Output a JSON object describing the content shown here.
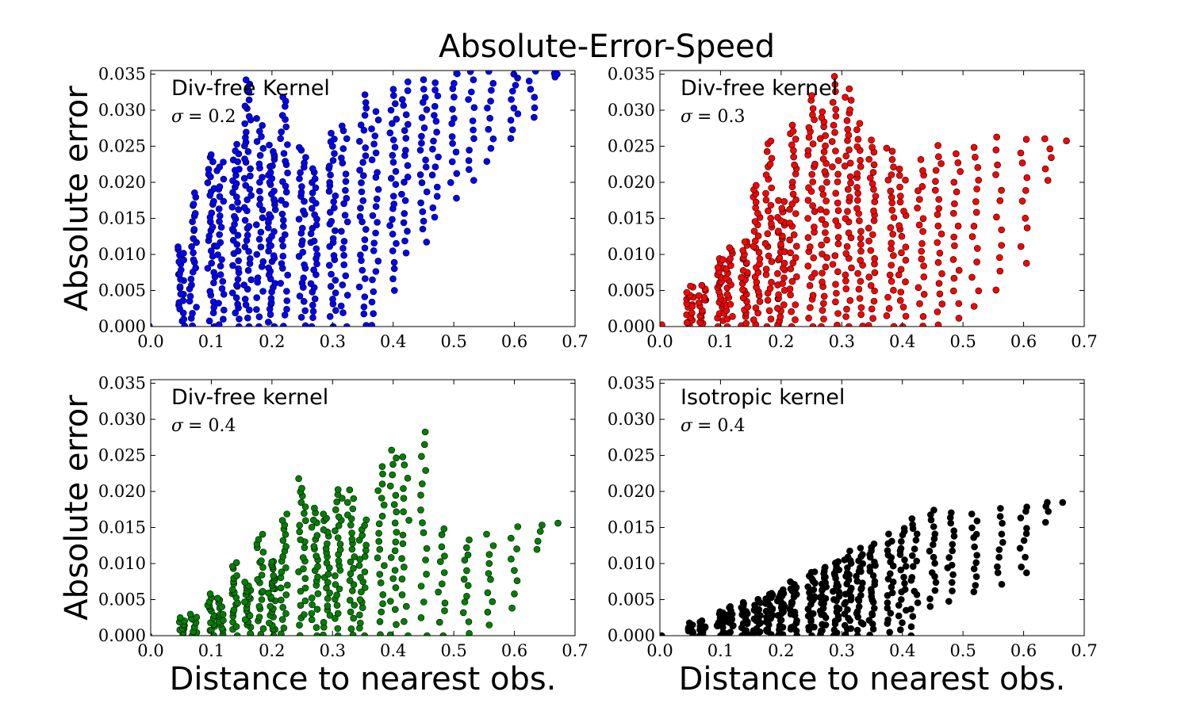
{
  "suptitle": "Absolute-Error-Speed",
  "chart_data": [
    {
      "type": "scatter",
      "title": "",
      "annotation": "Div-free Kernel",
      "sigma_label": "σ = 0.2",
      "sigma_symbol": "σ",
      "sigma_value": "= 0.2",
      "color": "#0000ff",
      "xlabel": "",
      "ylabel": "Absolute error",
      "xlim": [
        0.0,
        0.7
      ],
      "ylim": [
        0.0,
        0.0355
      ],
      "xticks": [
        "0.0",
        "0.1",
        "0.2",
        "0.3",
        "0.4",
        "0.5",
        "0.6",
        "0.7"
      ],
      "yticks": [
        "0.000",
        "0.005",
        "0.010",
        "0.015",
        "0.020",
        "0.025",
        "0.030",
        "0.035"
      ],
      "point_groups": [
        {
          "x": 0.0,
          "ymin": 0.0,
          "ymax": 0.0003,
          "n": 1
        },
        {
          "x": 0.05,
          "ymin": 0.0,
          "ymax": 0.011,
          "n": 24
        },
        {
          "x": 0.07,
          "ymin": 0.0,
          "ymax": 0.0185,
          "n": 26
        },
        {
          "x": 0.1,
          "ymin": 0.0,
          "ymax": 0.024,
          "n": 34
        },
        {
          "x": 0.115,
          "ymin": 0.0,
          "ymax": 0.023,
          "n": 26
        },
        {
          "x": 0.14,
          "ymin": 0.0,
          "ymax": 0.025,
          "n": 40
        },
        {
          "x": 0.16,
          "ymin": 0.0,
          "ymax": 0.0345,
          "n": 44
        },
        {
          "x": 0.18,
          "ymin": 0.0,
          "ymax": 0.029,
          "n": 30
        },
        {
          "x": 0.2,
          "ymin": 0.0,
          "ymax": 0.025,
          "n": 46
        },
        {
          "x": 0.22,
          "ymin": 0.0,
          "ymax": 0.032,
          "n": 34
        },
        {
          "x": 0.25,
          "ymin": 0.0,
          "ymax": 0.025,
          "n": 30
        },
        {
          "x": 0.27,
          "ymin": 0.0,
          "ymax": 0.022,
          "n": 30
        },
        {
          "x": 0.3,
          "ymin": 0.0,
          "ymax": 0.027,
          "n": 34
        },
        {
          "x": 0.32,
          "ymin": 0.0,
          "ymax": 0.028,
          "n": 24
        },
        {
          "x": 0.35,
          "ymin": 0.0,
          "ymax": 0.032,
          "n": 30
        },
        {
          "x": 0.37,
          "ymin": 0.0,
          "ymax": 0.03,
          "n": 24
        },
        {
          "x": 0.4,
          "ymin": 0.005,
          "ymax": 0.033,
          "n": 26
        },
        {
          "x": 0.42,
          "ymin": 0.01,
          "ymax": 0.034,
          "n": 20
        },
        {
          "x": 0.45,
          "ymin": 0.012,
          "ymax": 0.034,
          "n": 20
        },
        {
          "x": 0.47,
          "ymin": 0.015,
          "ymax": 0.034,
          "n": 16
        },
        {
          "x": 0.5,
          "ymin": 0.018,
          "ymax": 0.0352,
          "n": 14
        },
        {
          "x": 0.53,
          "ymin": 0.02,
          "ymax": 0.0352,
          "n": 12
        },
        {
          "x": 0.56,
          "ymin": 0.023,
          "ymax": 0.0352,
          "n": 10
        },
        {
          "x": 0.6,
          "ymin": 0.026,
          "ymax": 0.0352,
          "n": 10
        },
        {
          "x": 0.63,
          "ymin": 0.029,
          "ymax": 0.0352,
          "n": 6
        },
        {
          "x": 0.67,
          "ymin": 0.0345,
          "ymax": 0.0352,
          "n": 3
        }
      ]
    },
    {
      "type": "scatter",
      "title": "",
      "annotation": "Div-free kernel",
      "sigma_label": "σ = 0.3",
      "sigma_symbol": "σ",
      "sigma_value": "= 0.3",
      "color": "#ff0000",
      "xlabel": "",
      "ylabel": "",
      "xlim": [
        0.0,
        0.7
      ],
      "ylim": [
        0.0,
        0.0355
      ],
      "xticks": [
        "0.0",
        "0.1",
        "0.2",
        "0.3",
        "0.4",
        "0.5",
        "0.6",
        "0.7"
      ],
      "yticks": [
        "0.000",
        "0.005",
        "0.010",
        "0.015",
        "0.020",
        "0.025",
        "0.030",
        "0.035"
      ],
      "point_groups": [
        {
          "x": 0.0,
          "ymin": 0.0,
          "ymax": 0.0003,
          "n": 1
        },
        {
          "x": 0.05,
          "ymin": 0.0,
          "ymax": 0.0055,
          "n": 18
        },
        {
          "x": 0.07,
          "ymin": 0.0,
          "ymax": 0.0055,
          "n": 16
        },
        {
          "x": 0.1,
          "ymin": 0.0,
          "ymax": 0.0095,
          "n": 24
        },
        {
          "x": 0.115,
          "ymin": 0.0,
          "ymax": 0.011,
          "n": 20
        },
        {
          "x": 0.14,
          "ymin": 0.0,
          "ymax": 0.012,
          "n": 26
        },
        {
          "x": 0.16,
          "ymin": 0.0,
          "ymax": 0.0195,
          "n": 30
        },
        {
          "x": 0.18,
          "ymin": 0.0,
          "ymax": 0.026,
          "n": 30
        },
        {
          "x": 0.2,
          "ymin": 0.0,
          "ymax": 0.0175,
          "n": 36
        },
        {
          "x": 0.22,
          "ymin": 0.0,
          "ymax": 0.028,
          "n": 34
        },
        {
          "x": 0.25,
          "ymin": 0.0,
          "ymax": 0.032,
          "n": 36
        },
        {
          "x": 0.27,
          "ymin": 0.0,
          "ymax": 0.03,
          "n": 34
        },
        {
          "x": 0.29,
          "ymin": 0.0,
          "ymax": 0.0358,
          "n": 30
        },
        {
          "x": 0.31,
          "ymin": 0.0,
          "ymax": 0.033,
          "n": 34
        },
        {
          "x": 0.33,
          "ymin": 0.0,
          "ymax": 0.028,
          "n": 28
        },
        {
          "x": 0.35,
          "ymin": 0.0,
          "ymax": 0.026,
          "n": 28
        },
        {
          "x": 0.38,
          "ymin": 0.0,
          "ymax": 0.025,
          "n": 24
        },
        {
          "x": 0.4,
          "ymin": 0.0,
          "ymax": 0.022,
          "n": 22
        },
        {
          "x": 0.43,
          "ymin": 0.0,
          "ymax": 0.023,
          "n": 20
        },
        {
          "x": 0.46,
          "ymin": 0.0,
          "ymax": 0.025,
          "n": 20
        },
        {
          "x": 0.49,
          "ymin": 0.001,
          "ymax": 0.024,
          "n": 16
        },
        {
          "x": 0.52,
          "ymin": 0.003,
          "ymax": 0.025,
          "n": 14
        },
        {
          "x": 0.56,
          "ymin": 0.005,
          "ymax": 0.026,
          "n": 12
        },
        {
          "x": 0.6,
          "ymin": 0.009,
          "ymax": 0.026,
          "n": 10
        },
        {
          "x": 0.64,
          "ymin": 0.02,
          "ymax": 0.026,
          "n": 5
        },
        {
          "x": 0.67,
          "ymin": 0.026,
          "ymax": 0.026,
          "n": 1
        }
      ]
    },
    {
      "type": "scatter",
      "title": "",
      "annotation": "Div-free kernel",
      "sigma_label": "σ = 0.4",
      "sigma_symbol": "σ",
      "sigma_value": "= 0.4",
      "color": "#008000",
      "xlabel": "Distance to nearest obs.",
      "ylabel": "Absolute error",
      "xlim": [
        0.0,
        0.7
      ],
      "ylim": [
        0.0,
        0.0355
      ],
      "xticks": [
        "0.0",
        "0.1",
        "0.2",
        "0.3",
        "0.4",
        "0.5",
        "0.6",
        "0.7"
      ],
      "yticks": [
        "0.000",
        "0.005",
        "0.010",
        "0.015",
        "0.020",
        "0.025",
        "0.030",
        "0.035"
      ],
      "point_groups": [
        {
          "x": 0.0,
          "ymin": 0.0,
          "ymax": 0.0003,
          "n": 1
        },
        {
          "x": 0.05,
          "ymin": 0.0,
          "ymax": 0.0025,
          "n": 10
        },
        {
          "x": 0.07,
          "ymin": 0.0,
          "ymax": 0.003,
          "n": 10
        },
        {
          "x": 0.1,
          "ymin": 0.0,
          "ymax": 0.0055,
          "n": 16
        },
        {
          "x": 0.115,
          "ymin": 0.0,
          "ymax": 0.005,
          "n": 14
        },
        {
          "x": 0.14,
          "ymin": 0.0,
          "ymax": 0.01,
          "n": 20
        },
        {
          "x": 0.16,
          "ymin": 0.0,
          "ymax": 0.0075,
          "n": 20
        },
        {
          "x": 0.18,
          "ymin": 0.0,
          "ymax": 0.014,
          "n": 20
        },
        {
          "x": 0.2,
          "ymin": 0.0,
          "ymax": 0.0105,
          "n": 26
        },
        {
          "x": 0.22,
          "ymin": 0.0,
          "ymax": 0.017,
          "n": 22
        },
        {
          "x": 0.25,
          "ymin": 0.0,
          "ymax": 0.0215,
          "n": 26
        },
        {
          "x": 0.27,
          "ymin": 0.0,
          "ymax": 0.0175,
          "n": 24
        },
        {
          "x": 0.29,
          "ymin": 0.0,
          "ymax": 0.017,
          "n": 24
        },
        {
          "x": 0.31,
          "ymin": 0.0,
          "ymax": 0.0205,
          "n": 26
        },
        {
          "x": 0.33,
          "ymin": 0.0,
          "ymax": 0.02,
          "n": 24
        },
        {
          "x": 0.35,
          "ymin": 0.0,
          "ymax": 0.016,
          "n": 22
        },
        {
          "x": 0.38,
          "ymin": 0.0,
          "ymax": 0.0235,
          "n": 20
        },
        {
          "x": 0.4,
          "ymin": 0.0,
          "ymax": 0.026,
          "n": 20
        },
        {
          "x": 0.42,
          "ymin": 0.0,
          "ymax": 0.025,
          "n": 16
        },
        {
          "x": 0.45,
          "ymin": 0.0,
          "ymax": 0.028,
          "n": 16
        },
        {
          "x": 0.48,
          "ymin": 0.0,
          "ymax": 0.015,
          "n": 12
        },
        {
          "x": 0.52,
          "ymin": 0.0005,
          "ymax": 0.0135,
          "n": 12
        },
        {
          "x": 0.56,
          "ymin": 0.0015,
          "ymax": 0.014,
          "n": 10
        },
        {
          "x": 0.6,
          "ymin": 0.004,
          "ymax": 0.015,
          "n": 8
        },
        {
          "x": 0.64,
          "ymin": 0.012,
          "ymax": 0.0155,
          "n": 4
        },
        {
          "x": 0.67,
          "ymin": 0.0155,
          "ymax": 0.0155,
          "n": 1
        }
      ]
    },
    {
      "type": "scatter",
      "title": "",
      "annotation": "Isotropic kernel",
      "sigma_label": "σ = 0.4",
      "sigma_symbol": "σ",
      "sigma_value": "= 0.4",
      "color": "#000000",
      "xlabel": "Distance to nearest obs.",
      "ylabel": "",
      "xlim": [
        0.0,
        0.7
      ],
      "ylim": [
        0.0,
        0.0355
      ],
      "xticks": [
        "0.0",
        "0.1",
        "0.2",
        "0.3",
        "0.4",
        "0.5",
        "0.6",
        "0.7"
      ],
      "yticks": [
        "0.000",
        "0.005",
        "0.010",
        "0.015",
        "0.020",
        "0.025",
        "0.030",
        "0.035"
      ],
      "point_groups": [
        {
          "x": 0.0,
          "ymin": 0.0,
          "ymax": 0.0002,
          "n": 1
        },
        {
          "x": 0.05,
          "ymin": 0.0,
          "ymax": 0.0015,
          "n": 10
        },
        {
          "x": 0.07,
          "ymin": 0.0,
          "ymax": 0.002,
          "n": 10
        },
        {
          "x": 0.1,
          "ymin": 0.0,
          "ymax": 0.0035,
          "n": 14
        },
        {
          "x": 0.115,
          "ymin": 0.0,
          "ymax": 0.004,
          "n": 14
        },
        {
          "x": 0.14,
          "ymin": 0.0,
          "ymax": 0.0045,
          "n": 18
        },
        {
          "x": 0.16,
          "ymin": 0.0,
          "ymax": 0.005,
          "n": 20
        },
        {
          "x": 0.18,
          "ymin": 0.0,
          "ymax": 0.006,
          "n": 22
        },
        {
          "x": 0.2,
          "ymin": 0.0,
          "ymax": 0.0065,
          "n": 24
        },
        {
          "x": 0.22,
          "ymin": 0.0,
          "ymax": 0.0075,
          "n": 24
        },
        {
          "x": 0.25,
          "ymin": 0.0,
          "ymax": 0.009,
          "n": 26
        },
        {
          "x": 0.27,
          "ymin": 0.0,
          "ymax": 0.0095,
          "n": 26
        },
        {
          "x": 0.29,
          "ymin": 0.0,
          "ymax": 0.0105,
          "n": 26
        },
        {
          "x": 0.31,
          "ymin": 0.0,
          "ymax": 0.0115,
          "n": 26
        },
        {
          "x": 0.33,
          "ymin": 0.0,
          "ymax": 0.012,
          "n": 24
        },
        {
          "x": 0.35,
          "ymin": 0.0,
          "ymax": 0.013,
          "n": 24
        },
        {
          "x": 0.38,
          "ymin": 0.0005,
          "ymax": 0.014,
          "n": 20
        },
        {
          "x": 0.4,
          "ymin": 0.001,
          "ymax": 0.015,
          "n": 20
        },
        {
          "x": 0.42,
          "ymin": 0.0,
          "ymax": 0.0165,
          "n": 18
        },
        {
          "x": 0.45,
          "ymin": 0.004,
          "ymax": 0.0175,
          "n": 16
        },
        {
          "x": 0.48,
          "ymin": 0.005,
          "ymax": 0.017,
          "n": 14
        },
        {
          "x": 0.52,
          "ymin": 0.006,
          "ymax": 0.017,
          "n": 12
        },
        {
          "x": 0.56,
          "ymin": 0.007,
          "ymax": 0.0175,
          "n": 10
        },
        {
          "x": 0.6,
          "ymin": 0.0085,
          "ymax": 0.018,
          "n": 10
        },
        {
          "x": 0.64,
          "ymin": 0.016,
          "ymax": 0.0185,
          "n": 4
        },
        {
          "x": 0.67,
          "ymin": 0.0183,
          "ymax": 0.0183,
          "n": 1
        }
      ]
    }
  ]
}
